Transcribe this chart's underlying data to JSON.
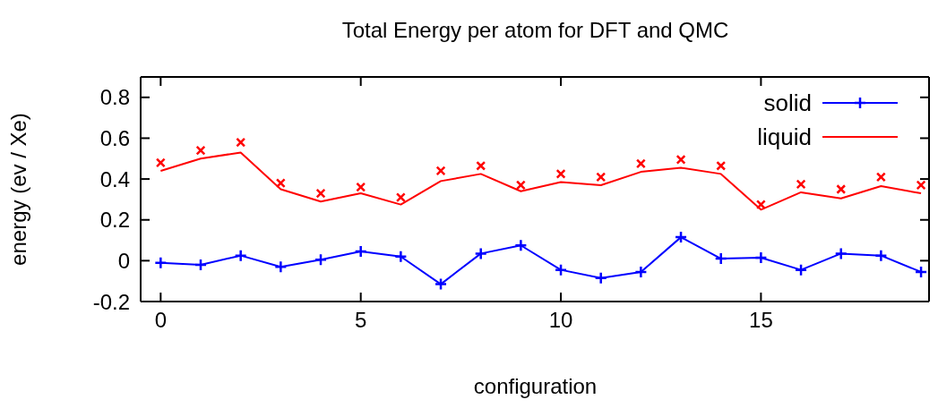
{
  "chart_data": {
    "type": "line",
    "title": "Total Energy per atom for DFT and QMC",
    "xlabel": "configuration",
    "ylabel": "energy (ev / Xe)",
    "x": [
      0,
      1,
      2,
      3,
      4,
      5,
      6,
      7,
      8,
      9,
      10,
      11,
      12,
      13,
      14,
      15,
      16,
      17,
      18,
      19
    ],
    "series": [
      {
        "name": "solid",
        "color": "#0000ff",
        "marker": "cross",
        "values": [
          -0.01,
          -0.02,
          0.025,
          -0.03,
          0.005,
          0.045,
          0.02,
          -0.115,
          0.035,
          0.075,
          -0.045,
          -0.085,
          -0.055,
          0.115,
          0.01,
          0.015,
          -0.045,
          0.035,
          0.025,
          -0.055
        ]
      },
      {
        "name": "liquid",
        "color": "#ff0000",
        "marker": "none",
        "values": [
          0.44,
          0.5,
          0.53,
          0.35,
          0.29,
          0.33,
          0.275,
          0.39,
          0.425,
          0.34,
          0.385,
          0.37,
          0.435,
          0.455,
          0.425,
          0.25,
          0.335,
          0.305,
          0.365,
          0.33
        ]
      },
      {
        "type": "scatter",
        "color": "#ff0000",
        "marker": "cross",
        "values": [
          0.48,
          0.54,
          0.58,
          0.38,
          0.33,
          0.36,
          0.31,
          0.44,
          0.465,
          0.37,
          0.425,
          0.41,
          0.475,
          0.495,
          0.465,
          0.275,
          0.375,
          0.35,
          0.41,
          0.37
        ]
      }
    ],
    "xlim": [
      -0.5,
      19.2
    ],
    "xticks": [
      0,
      5,
      10,
      15
    ],
    "ylim": [
      -0.2,
      0.9
    ],
    "yticks": [
      -0.2,
      0,
      0.2,
      0.4,
      0.6,
      0.8
    ],
    "grid": false,
    "legend": "top right"
  }
}
